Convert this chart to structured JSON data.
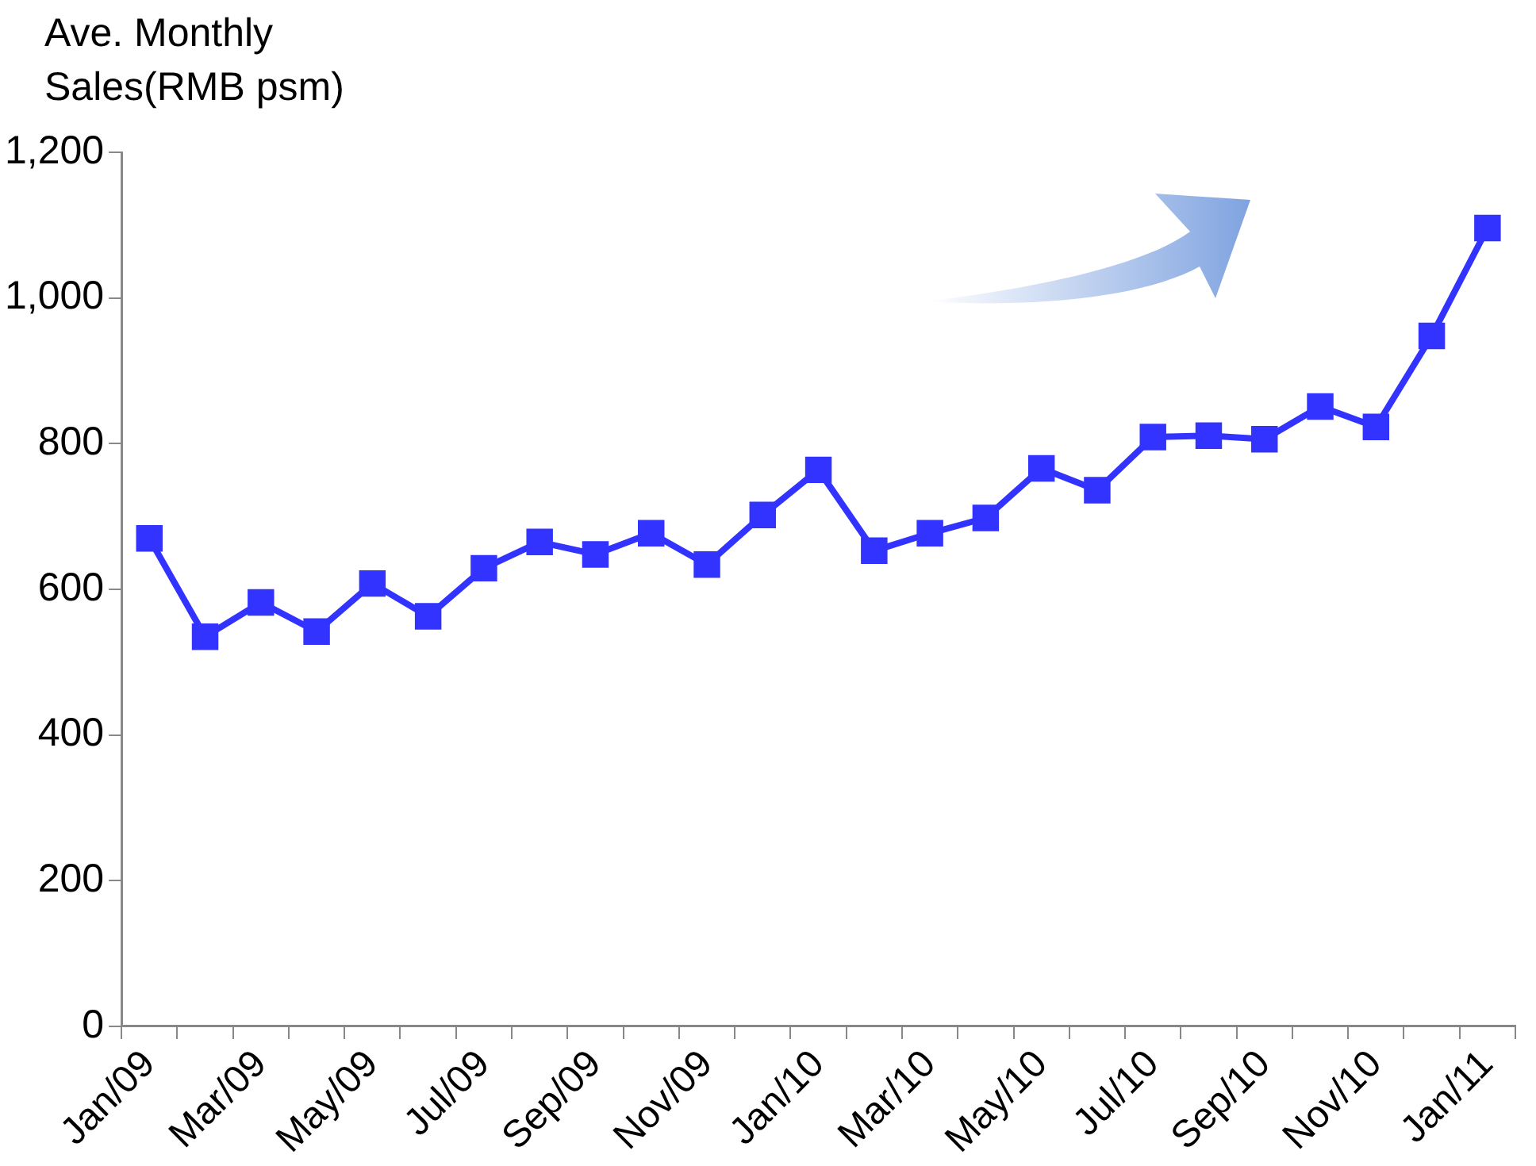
{
  "chart_data": {
    "type": "line",
    "ylabel": "Ave. Monthly Sales(RMB psm)",
    "categories": [
      "Jan/09",
      null,
      "Mar/09",
      null,
      "May/09",
      null,
      "Jul/09",
      null,
      "Sep/09",
      null,
      "Nov/09",
      null,
      "Jan/10",
      null,
      "Mar/10",
      null,
      "May/10",
      null,
      "Jul/10",
      null,
      "Sep/10",
      null,
      "Nov/10",
      null,
      "Jan/11"
    ],
    "series": [
      {
        "color": "#3333ff",
        "values": [
          670,
          535,
          582,
          542,
          608,
          563,
          629,
          665,
          648,
          677,
          634,
          702,
          764,
          653,
          677,
          698,
          766,
          736,
          809,
          811,
          806,
          851,
          823,
          948,
          1096
        ]
      }
    ],
    "ylim": [
      0,
      1200
    ],
    "yticks": [
      0,
      200,
      400,
      600,
      800,
      {
        "value": 1000,
        "label": "1,000"
      },
      {
        "value": 1200,
        "label": "1,200"
      }
    ],
    "grid": false,
    "legend": false,
    "marker": "square",
    "line_style": "solid"
  }
}
